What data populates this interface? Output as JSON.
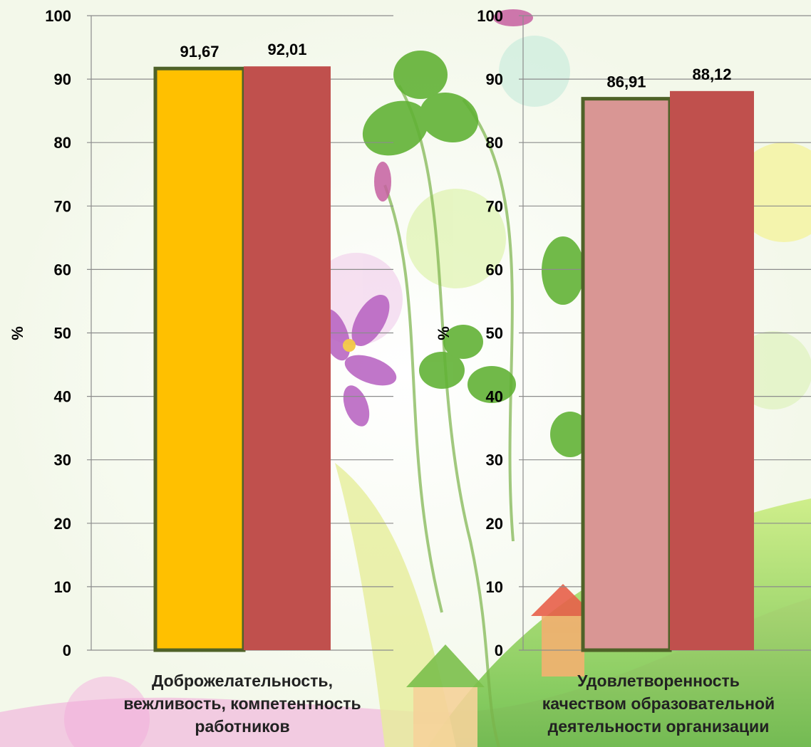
{
  "chart_data": [
    {
      "type": "bar",
      "categories": [
        "Доброжелательность, вежливость, компетентность работников"
      ],
      "category_lines": [
        "Доброжелательность,",
        "вежливость, компетентность",
        "работников"
      ],
      "series": [
        {
          "values": [
            91.67
          ],
          "labels": [
            "91,67"
          ],
          "color": "#FFC000",
          "outline": "#4F6228"
        },
        {
          "values": [
            92.01
          ],
          "labels": [
            "92,01"
          ],
          "color": "#C0504D"
        }
      ],
      "ylabel": "%",
      "ylim": [
        0,
        100
      ],
      "yticks": [
        "0",
        "10",
        "20",
        "30",
        "40",
        "50",
        "60",
        "70",
        "80",
        "90",
        "100"
      ],
      "grid": true
    },
    {
      "type": "bar",
      "categories": [
        "Удовлетворенность качеством образовательной деятельности организации"
      ],
      "category_lines": [
        "Удовлетворенность",
        "качеством образовательной",
        "деятельности организации"
      ],
      "series": [
        {
          "values": [
            86.91
          ],
          "labels": [
            "86,91"
          ],
          "color": "#D99694",
          "outline": "#4F6228"
        },
        {
          "values": [
            88.12
          ],
          "labels": [
            "88,12"
          ],
          "color": "#C0504D"
        }
      ],
      "ylabel": "%",
      "ylim": [
        0,
        100
      ],
      "yticks": [
        "0",
        "10",
        "20",
        "30",
        "40",
        "50",
        "60",
        "70",
        "80",
        "90",
        "100"
      ],
      "grid": true
    }
  ]
}
